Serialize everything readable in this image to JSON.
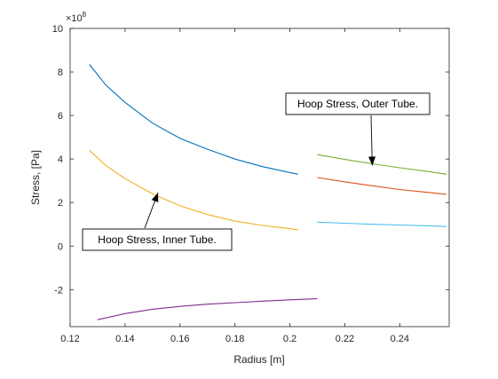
{
  "chart_data": {
    "type": "line",
    "title": "",
    "xlabel": "Radius [m]",
    "ylabel": "Stress, [Pa]",
    "xlim": [
      0.12,
      0.258
    ],
    "ylim": [
      -3.7,
      10
    ],
    "y_exponent_prefix": "×10",
    "y_exponent_power": "8",
    "x_ticks": [
      0.12,
      0.14,
      0.16,
      0.18,
      0.2,
      0.22,
      0.24
    ],
    "x_tick_labels": [
      "0.12",
      "0.14",
      "0.16",
      "0.18",
      "0.2",
      "0.22",
      "0.24"
    ],
    "y_ticks": [
      -2,
      0,
      2,
      4,
      6,
      8,
      10
    ],
    "y_tick_labels": [
      "-2",
      "0",
      "2",
      "4",
      "6",
      "8",
      "10"
    ],
    "grid": false,
    "series": [
      {
        "color": "#0072BD",
        "x": [
          0.127,
          0.133,
          0.14,
          0.15,
          0.16,
          0.17,
          0.18,
          0.19,
          0.2,
          0.203
        ],
        "y": [
          8.35,
          7.4,
          6.6,
          5.65,
          4.95,
          4.45,
          4.0,
          3.65,
          3.38,
          3.3
        ]
      },
      {
        "color": "#EDB120",
        "x": [
          0.127,
          0.133,
          0.14,
          0.15,
          0.16,
          0.17,
          0.18,
          0.19,
          0.2,
          0.203
        ],
        "y": [
          4.4,
          3.7,
          3.1,
          2.4,
          1.85,
          1.45,
          1.15,
          0.95,
          0.8,
          0.75
        ]
      },
      {
        "color": "#7E2F8E",
        "x": [
          0.13,
          0.14,
          0.15,
          0.16,
          0.17,
          0.18,
          0.19,
          0.2,
          0.21
        ],
        "y": [
          -3.38,
          -3.1,
          -2.9,
          -2.77,
          -2.67,
          -2.6,
          -2.53,
          -2.47,
          -2.42
        ]
      },
      {
        "color": "#77AC30",
        "x": [
          0.21,
          0.22,
          0.23,
          0.24,
          0.25,
          0.257
        ],
        "y": [
          4.2,
          3.98,
          3.78,
          3.6,
          3.43,
          3.3
        ]
      },
      {
        "color": "#D95319",
        "x": [
          0.21,
          0.22,
          0.23,
          0.24,
          0.25,
          0.257
        ],
        "y": [
          3.15,
          2.95,
          2.77,
          2.6,
          2.47,
          2.38
        ]
      },
      {
        "color": "#4DBEEE",
        "x": [
          0.21,
          0.22,
          0.23,
          0.24,
          0.25,
          0.257
        ],
        "y": [
          1.1,
          1.05,
          1.0,
          0.97,
          0.93,
          0.9
        ]
      }
    ],
    "annotations": [
      {
        "text": "Hoop Stress, Outer Tube.",
        "arrow_to": [
          0.23,
          3.7
        ]
      },
      {
        "text": "Hoop Stress, Inner Tube.",
        "arrow_to": [
          0.152,
          2.45
        ]
      }
    ]
  }
}
